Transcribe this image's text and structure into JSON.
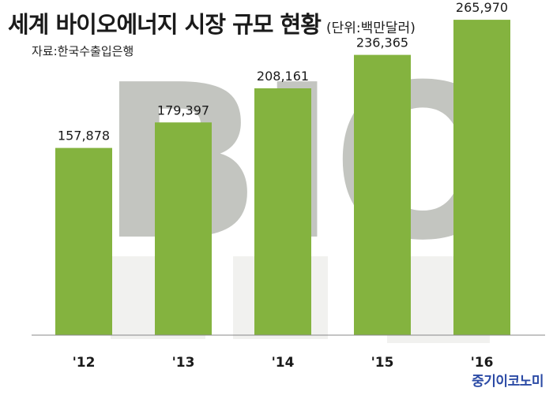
{
  "title": "세계 바이오에너지 시장 규모 현황",
  "unit": "(단위:백만달러)",
  "source": "자료:한국수출입은행",
  "brand": "중기이코노미",
  "background_text": "BIO",
  "colors": {
    "bar": "#84b33f",
    "axis": "#888888",
    "bg_shape": "#b9bbb6",
    "pot": "#f1f1ef"
  },
  "chart_data": {
    "type": "bar",
    "title": "세계 바이오에너지 시장 규모 현황",
    "unit": "(단위:백만달러)",
    "categories": [
      "'12",
      "'13",
      "'14",
      "'15",
      "'16"
    ],
    "values": [
      157878,
      179397,
      208161,
      236365,
      265970
    ],
    "data_labels": [
      "157,878",
      "179,397",
      "208,161",
      "236,365",
      "265,970"
    ],
    "ylim": [
      0,
      276000
    ],
    "grid": false,
    "legend": "none"
  }
}
